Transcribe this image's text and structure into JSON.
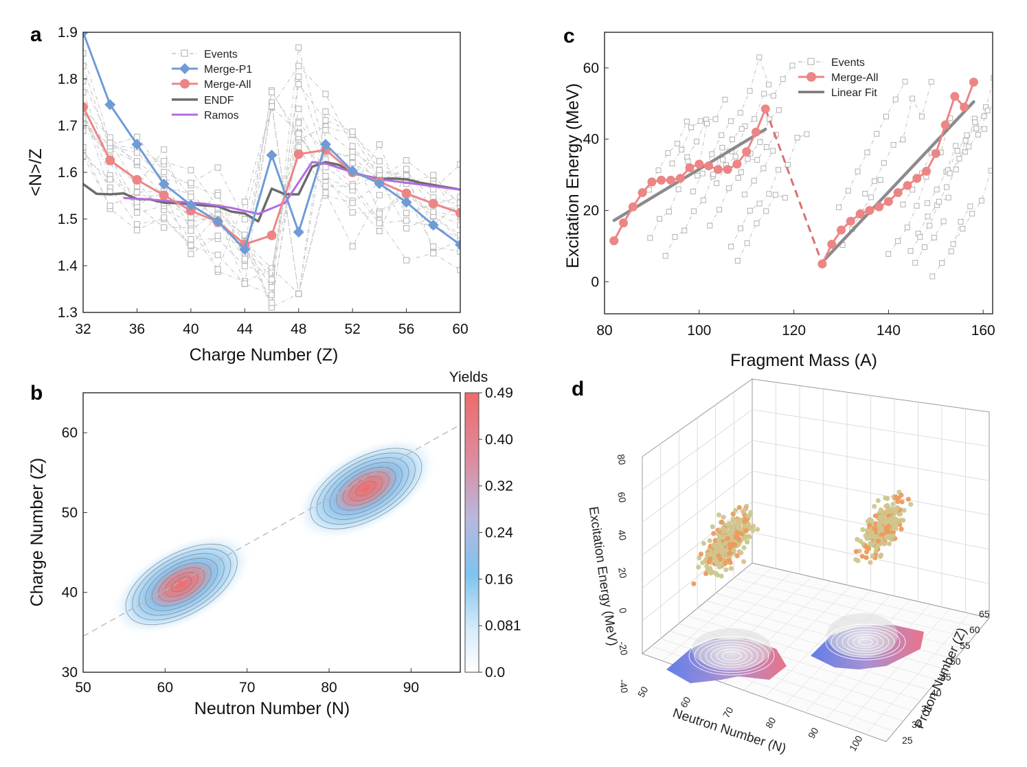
{
  "chart_data": [
    {
      "panel": "a",
      "type": "line",
      "xlabel": "Charge Number (Z)",
      "ylabel": "<N>/Z",
      "xlim": [
        32,
        60
      ],
      "ylim": [
        1.3,
        1.9
      ],
      "xticks": [
        32,
        36,
        40,
        44,
        48,
        52,
        56,
        60
      ],
      "yticks": [
        "1.3",
        "1.4",
        "1.5",
        "1.6",
        "1.7",
        "1.8",
        "1.9"
      ],
      "legend": [
        "Events",
        "Merge-P1",
        "Merge-All",
        "ENDF",
        "Ramos"
      ],
      "series": [
        {
          "name": "Merge-P1",
          "color": "#6f9bd6",
          "x": [
            32,
            34,
            36,
            38,
            40,
            42,
            44,
            46,
            48,
            50,
            52,
            54,
            56,
            58,
            60
          ],
          "y": [
            1.9,
            1.745,
            1.66,
            1.575,
            1.53,
            1.495,
            1.435,
            1.637,
            1.472,
            1.66,
            1.603,
            1.576,
            1.536,
            1.487,
            1.445
          ]
        },
        {
          "name": "Merge-All",
          "color": "#ec8585",
          "x": [
            32,
            34,
            36,
            38,
            40,
            42,
            44,
            46,
            48,
            50,
            52,
            54,
            56,
            58,
            60
          ],
          "y": [
            1.74,
            1.626,
            1.584,
            1.551,
            1.518,
            1.494,
            1.446,
            1.465,
            1.639,
            1.648,
            1.6,
            1.58,
            1.555,
            1.533,
            1.513
          ]
        },
        {
          "name": "ENDF",
          "color": "#6b6b6b",
          "x": [
            32,
            33,
            34,
            35,
            36,
            37,
            38,
            39,
            40,
            41,
            42,
            43,
            44,
            45,
            46,
            47,
            48,
            49,
            50,
            51,
            52,
            53,
            54,
            55,
            56,
            57,
            58,
            59,
            60
          ],
          "y": [
            1.575,
            1.554,
            1.553,
            1.555,
            1.543,
            1.542,
            1.535,
            1.534,
            1.532,
            1.529,
            1.527,
            1.516,
            1.512,
            1.495,
            1.565,
            1.553,
            1.553,
            1.612,
            1.622,
            1.616,
            1.598,
            1.592,
            1.586,
            1.587,
            1.585,
            1.578,
            1.573,
            1.568,
            1.563
          ]
        },
        {
          "name": "Ramos",
          "color": "#b36be0",
          "x": [
            35,
            37,
            39,
            41,
            43,
            45,
            47,
            49,
            50,
            52,
            54,
            56,
            58,
            60
          ],
          "y": [
            1.545,
            1.542,
            1.537,
            1.533,
            1.524,
            1.511,
            1.535,
            1.622,
            1.619,
            1.6,
            1.585,
            1.578,
            1.57,
            1.563
          ]
        }
      ]
    },
    {
      "panel": "b",
      "type": "heatmap",
      "xlabel": "Neutron Number (N)",
      "ylabel": "Charge Number (Z)",
      "xlim": [
        50,
        96
      ],
      "ylim": [
        30,
        65
      ],
      "xticks": [
        50,
        60,
        70,
        80,
        90
      ],
      "yticks": [
        30,
        40,
        50,
        60
      ],
      "colorbar_title": "Yields",
      "colorbar_ticks": [
        "0.49",
        "0.40",
        "0.32",
        "0.24",
        "0.16",
        "0.081",
        "0.0"
      ],
      "peaks": [
        {
          "n": 62,
          "z": 41,
          "max_yield": 0.49
        },
        {
          "n": 84.5,
          "z": 53,
          "max_yield": 0.49
        }
      ],
      "trend_line": {
        "from": [
          50,
          34.5
        ],
        "to": [
          96,
          61
        ]
      }
    },
    {
      "panel": "c",
      "type": "line",
      "xlabel": "Fragment Mass (A)",
      "ylabel": "Excitation Energy (MeV)",
      "xlim": [
        80,
        162
      ],
      "ylim": [
        -9,
        70
      ],
      "xticks": [
        80,
        100,
        120,
        140,
        160
      ],
      "yticks": [
        0,
        20,
        40,
        60
      ],
      "legend": [
        "Events",
        "Merge-All",
        "Linear Fit"
      ],
      "series": [
        {
          "name": "Merge-All",
          "color": "#ec8585",
          "x": [
            82,
            84,
            86,
            88,
            90,
            92,
            94,
            96,
            98,
            100,
            102,
            104,
            106,
            108,
            110,
            112,
            114
          ],
          "y": [
            11.5,
            16.5,
            21,
            25,
            28,
            28.5,
            28.5,
            29,
            32,
            33,
            32.5,
            31.5,
            31.5,
            33,
            36.5,
            42,
            48.5
          ]
        },
        {
          "name": "Merge-All",
          "color": "#ec8585",
          "x": [
            126,
            128,
            130,
            132,
            134,
            136,
            138,
            140,
            142,
            144,
            146,
            148,
            150,
            152,
            154,
            156,
            158
          ],
          "y": [
            5,
            10.5,
            14.5,
            17,
            19,
            20,
            21,
            22.5,
            25,
            27,
            29,
            31,
            36,
            44,
            52,
            49,
            56
          ]
        },
        {
          "name": "Linear Fit",
          "color": "#777777",
          "x": [
            82,
            114
          ],
          "y": [
            17.2,
            42.8
          ]
        },
        {
          "name": "Linear Fit",
          "color": "#777777",
          "x": [
            126,
            158
          ],
          "y": [
            5.5,
            50.5
          ]
        }
      ]
    },
    {
      "panel": "d",
      "type": "scatter",
      "xlabel": "Neutron Number (N)",
      "ylabel": "Proton Number (Z)",
      "zlabel": "Excitation Energy (MeV)",
      "x_ticks": [
        "50",
        "60",
        "70",
        "80",
        "90",
        "100"
      ],
      "y_ticks": [
        "25",
        "30",
        "35",
        "40",
        "45",
        "50",
        "55",
        "60",
        "65"
      ],
      "z_ticks": [
        "-40",
        "-20",
        "0",
        "20",
        "40",
        "60",
        "80"
      ],
      "clusters": [
        {
          "n_center": 62,
          "z_center": 41,
          "e_center": 30
        },
        {
          "n_center": 85,
          "z_center": 53,
          "e_center": 30
        }
      ]
    }
  ],
  "panel_letters": {
    "a": "a",
    "b": "b",
    "c": "c",
    "d": "d"
  }
}
